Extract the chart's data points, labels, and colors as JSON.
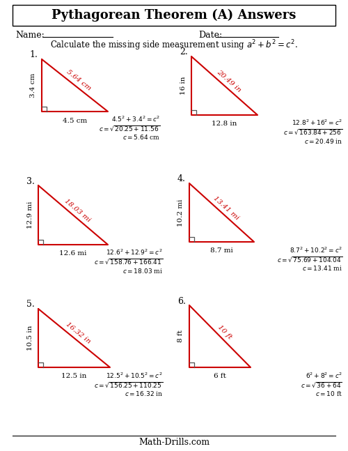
{
  "title": "Pythagorean Theorem (A) Answers",
  "instruction": "Calculate the missing side measurement using $a^2 + b^2 = c^2$.",
  "name_label": "Name:",
  "date_label": "Date:",
  "background_color": "#ffffff",
  "triangle_color": "#cc0000",
  "text_color": "#000000",
  "footer": "Math-Drills.com",
  "problems": [
    {
      "number": "1.",
      "leg_a": "3.4 cm",
      "leg_b": "4.5 cm",
      "hyp": "5.64 cm",
      "line1": "$4.5^2 + 3.4^2 = c^2$",
      "line2": "$c = \\sqrt{20.25 + 11.56}$",
      "line3": "$c = 5.64$ cm"
    },
    {
      "number": "2.",
      "leg_a": "16 in",
      "leg_b": "12.8 in",
      "hyp": "20.49 in",
      "line1": "$12.8^2 + 16^2 = c^2$",
      "line2": "$c = \\sqrt{163.84 + 256}$",
      "line3": "$c = 20.49$ in"
    },
    {
      "number": "3.",
      "leg_a": "12.9 mi",
      "leg_b": "12.6 mi",
      "hyp": "18.03 mi",
      "line1": "$12.6^2 + 12.9^2 = c^2$",
      "line2": "$c = \\sqrt{158.76 + 166.41}$",
      "line3": "$c = 18.03$ mi"
    },
    {
      "number": "4.",
      "leg_a": "10.2 mi",
      "leg_b": "8.7 mi",
      "hyp": "13.41 mi",
      "line1": "$8.7^2 + 10.2^2 = c^2$",
      "line2": "$c = \\sqrt{75.69 + 104.04}$",
      "line3": "$c = 13.41$ mi"
    },
    {
      "number": "5.",
      "leg_a": "10.5 in",
      "leg_b": "12.5 in",
      "hyp": "16.32 in",
      "line1": "$12.5^2 + 10.5^2 = c^2$",
      "line2": "$c = \\sqrt{156.25 + 110.25}$",
      "line3": "$c = 16.32$ in"
    },
    {
      "number": "6.",
      "leg_a": "8 ft",
      "leg_b": "6 ft",
      "hyp": "10 ft",
      "line1": "$6^2 + 8^2 = c^2$",
      "line2": "$c = \\sqrt{36 + 64}$",
      "line3": "$c = 10$ ft"
    }
  ]
}
